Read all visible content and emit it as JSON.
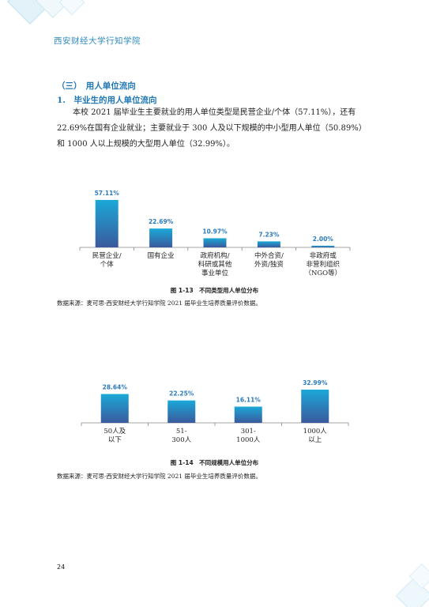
{
  "header": {
    "institution": "西安财经大学行知学院"
  },
  "section": {
    "title": "（三）　用人单位流向",
    "subtitle": "1.　毕业生的用人单位流向",
    "paragraph": "本校 2021 届毕业生主要就业的用人单位类型是民营企业/个体（57.11%），还有 22.69%在国有企业就业；主要就业于 300 人及以下规模的中小型用人单位（50.89%）和 1000 人以上规模的大型用人单位（32.99%）。"
  },
  "colors": {
    "bar_top": "#1ba8d8",
    "bar_bottom": "#3a5a9c",
    "label": "#2b7bbd",
    "accent": "#2e8bc0"
  },
  "chart_data": [
    {
      "type": "bar",
      "title": "图 1-13　不同类型用人单位分布",
      "categories": [
        "民营企业/\n个体",
        "国有企业",
        "政府机构/\n科研或其他\n事业单位",
        "中外合资/\n外资/独资",
        "非政府或\n非营利组织\n（NGO等）"
      ],
      "values": [
        57.11,
        22.69,
        10.97,
        7.23,
        2.0
      ],
      "data_labels": [
        "57.11%",
        "22.69%",
        "10.97%",
        "7.23%",
        "2.00%"
      ],
      "ylim": [
        0,
        57.11
      ],
      "grid": false,
      "source": "数据来源：麦可思-西安财经大学行知学院 2021 届毕业生培养质量评价数据。"
    },
    {
      "type": "bar",
      "title": "图 1-14　不同规模用人单位分布",
      "categories": [
        "50人及\n以下",
        "51-\n300人",
        "301-\n1000人",
        "1000人\n以上"
      ],
      "values": [
        28.64,
        22.25,
        16.11,
        32.99
      ],
      "data_labels": [
        "28.64%",
        "22.25%",
        "16.11%",
        "32.99%"
      ],
      "ylim": [
        0,
        32.99
      ],
      "grid": false,
      "source": "数据来源：麦可思-西安财经大学行知学院 2021 届毕业生培养质量评价数据。"
    }
  ],
  "footer": {
    "page_number": "24"
  }
}
